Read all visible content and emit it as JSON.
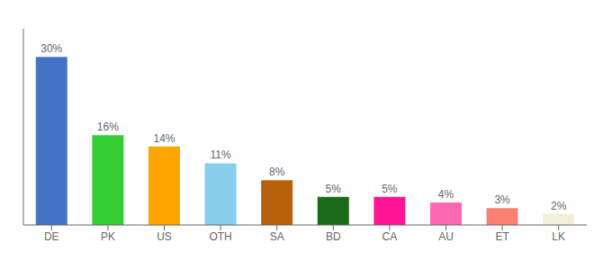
{
  "chart_data": {
    "type": "bar",
    "categories": [
      "DE",
      "PK",
      "US",
      "OTH",
      "SA",
      "BD",
      "CA",
      "AU",
      "ET",
      "LK"
    ],
    "values": [
      30,
      16,
      14,
      11,
      8,
      5,
      5,
      4,
      3,
      2
    ],
    "value_labels": [
      "30%",
      "16%",
      "14%",
      "11%",
      "8%",
      "5%",
      "5%",
      "4%",
      "3%",
      "2%"
    ],
    "colors": [
      "#4472C4",
      "#33CC33",
      "#FFA500",
      "#87CEEB",
      "#B8610A",
      "#1A6B1A",
      "#FF1493",
      "#FF69B4",
      "#FA8072",
      "#F0F0D8"
    ],
    "ylim": [
      0,
      35
    ],
    "data_labels": true,
    "tick_labels": "x",
    "grid": false
  }
}
